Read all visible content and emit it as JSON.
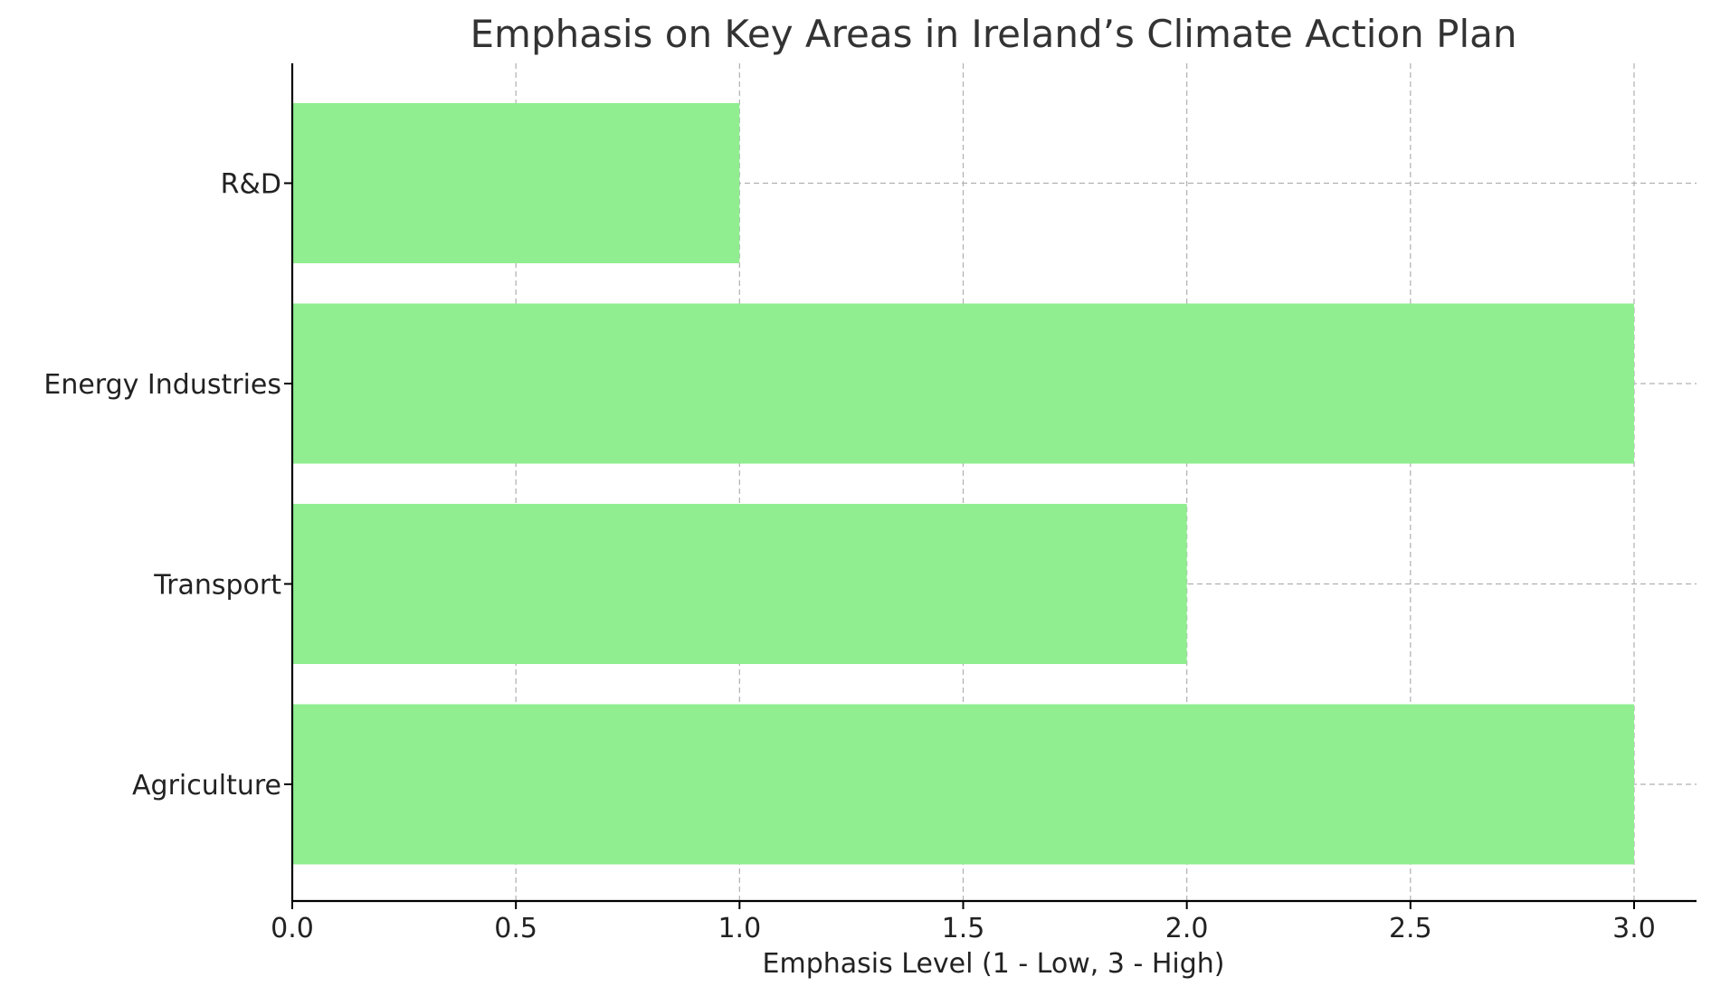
{
  "chart_data": {
    "type": "bar",
    "orientation": "horizontal",
    "title": "Emphasis on Key Areas in Ireland’s Climate Action Plan",
    "xlabel": "Emphasis Level (1 - Low, 3 - High)",
    "ylabel": "",
    "categories": [
      "Agriculture",
      "Transport",
      "Energy Industries",
      "R&D"
    ],
    "values": [
      3,
      2,
      3,
      1
    ],
    "xlim": [
      0,
      3.15
    ],
    "xticks": [
      "0.0",
      "0.5",
      "1.0",
      "1.5",
      "2.0",
      "2.5",
      "3.0"
    ],
    "grid": true,
    "bar_color": "#90ee90"
  }
}
